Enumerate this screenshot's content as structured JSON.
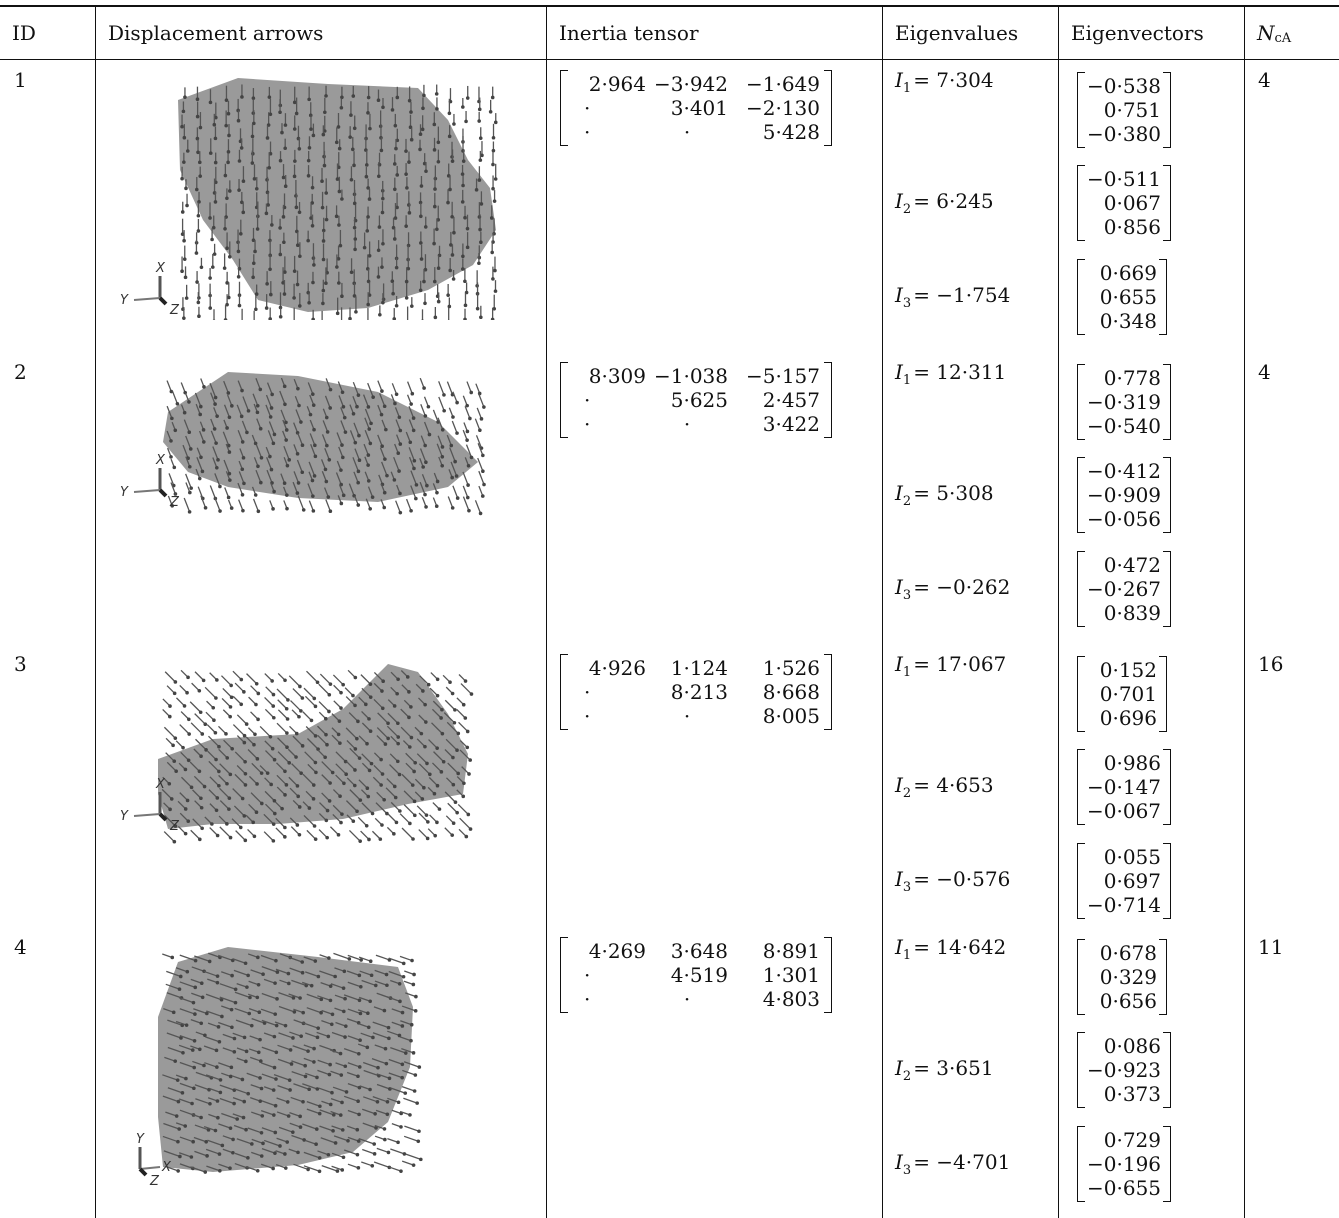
{
  "header": {
    "id": "ID",
    "displacement": "Displacement arrows",
    "tensor": "Inertia tensor",
    "eigenvalues": "Eigenvalues",
    "eigenvectors": "Eigenvectors",
    "n_main": "N",
    "n_sub": "cA"
  },
  "rows": [
    {
      "id": "1",
      "tensor": [
        [
          "2·964",
          "−3·942",
          "−1·649"
        ],
        [
          "·",
          "3·401",
          "−2·130"
        ],
        [
          "·",
          "·",
          "5·428"
        ]
      ],
      "eig": [
        {
          "sym": "I",
          "sub": "1",
          "val": "= 7·304",
          "vec": [
            "−0·538",
            "0·751",
            "−0·380"
          ]
        },
        {
          "sym": "I",
          "sub": "2",
          "val": "= 6·245",
          "vec": [
            "−0·511",
            "0·067",
            "0·856"
          ]
        },
        {
          "sym": "I",
          "sub": "3",
          "val": "= −1·754",
          "vec": [
            "0·669",
            "0·655",
            "0·348"
          ]
        }
      ],
      "n": "4",
      "axes": {
        "up": "X",
        "left": "Y",
        "corner": "Z"
      }
    },
    {
      "id": "2",
      "tensor": [
        [
          "8·309",
          "−1·038",
          "−5·157"
        ],
        [
          "·",
          "5·625",
          "2·457"
        ],
        [
          "·",
          "·",
          "3·422"
        ]
      ],
      "eig": [
        {
          "sym": "I",
          "sub": "1",
          "val": "= 12·311",
          "vec": [
            "0·778",
            "−0·319",
            "−0·540"
          ]
        },
        {
          "sym": "I",
          "sub": "2",
          "val": "= 5·308",
          "vec": [
            "−0·412",
            "−0·909",
            "−0·056"
          ]
        },
        {
          "sym": "I",
          "sub": "3",
          "val": "= −0·262",
          "vec": [
            "0·472",
            "−0·267",
            "0·839"
          ]
        }
      ],
      "n": "4",
      "axes": {
        "up": "X",
        "left": "Y",
        "corner": "Z"
      }
    },
    {
      "id": "3",
      "tensor": [
        [
          "4·926",
          "1·124",
          "1·526"
        ],
        [
          "·",
          "8·213",
          "8·668"
        ],
        [
          "·",
          "·",
          "8·005"
        ]
      ],
      "eig": [
        {
          "sym": "I",
          "sub": "1",
          "val": "= 17·067",
          "vec": [
            "0·152",
            "0·701",
            "0·696"
          ]
        },
        {
          "sym": "I",
          "sub": "2",
          "val": "= 4·653",
          "vec": [
            "0·986",
            "−0·147",
            "−0·067"
          ]
        },
        {
          "sym": "I",
          "sub": "3",
          "val": "= −0·576",
          "vec": [
            "0·055",
            "0·697",
            "−0·714"
          ]
        }
      ],
      "n": "16",
      "axes": {
        "up": "X",
        "left": "Y",
        "corner": "Z"
      }
    },
    {
      "id": "4",
      "tensor": [
        [
          "4·269",
          "3·648",
          "8·891"
        ],
        [
          "·",
          "4·519",
          "1·301"
        ],
        [
          "·",
          "·",
          "4·803"
        ]
      ],
      "eig": [
        {
          "sym": "I",
          "sub": "1",
          "val": "= 14·642",
          "vec": [
            "0·678",
            "0·329",
            "0·656"
          ]
        },
        {
          "sym": "I",
          "sub": "2",
          "val": "= 3·651",
          "vec": [
            "0·086",
            "−0·923",
            "0·373"
          ]
        },
        {
          "sym": "I",
          "sub": "3",
          "val": "= −4·701",
          "vec": [
            "0·729",
            "−0·196",
            "−0·655"
          ]
        }
      ],
      "n": "11",
      "axes": {
        "up": "Y",
        "right": "X",
        "corner": "Z"
      }
    }
  ],
  "colors": {
    "shape": "#9a9a9a",
    "arrow": "#555555",
    "rule": "#111111"
  }
}
